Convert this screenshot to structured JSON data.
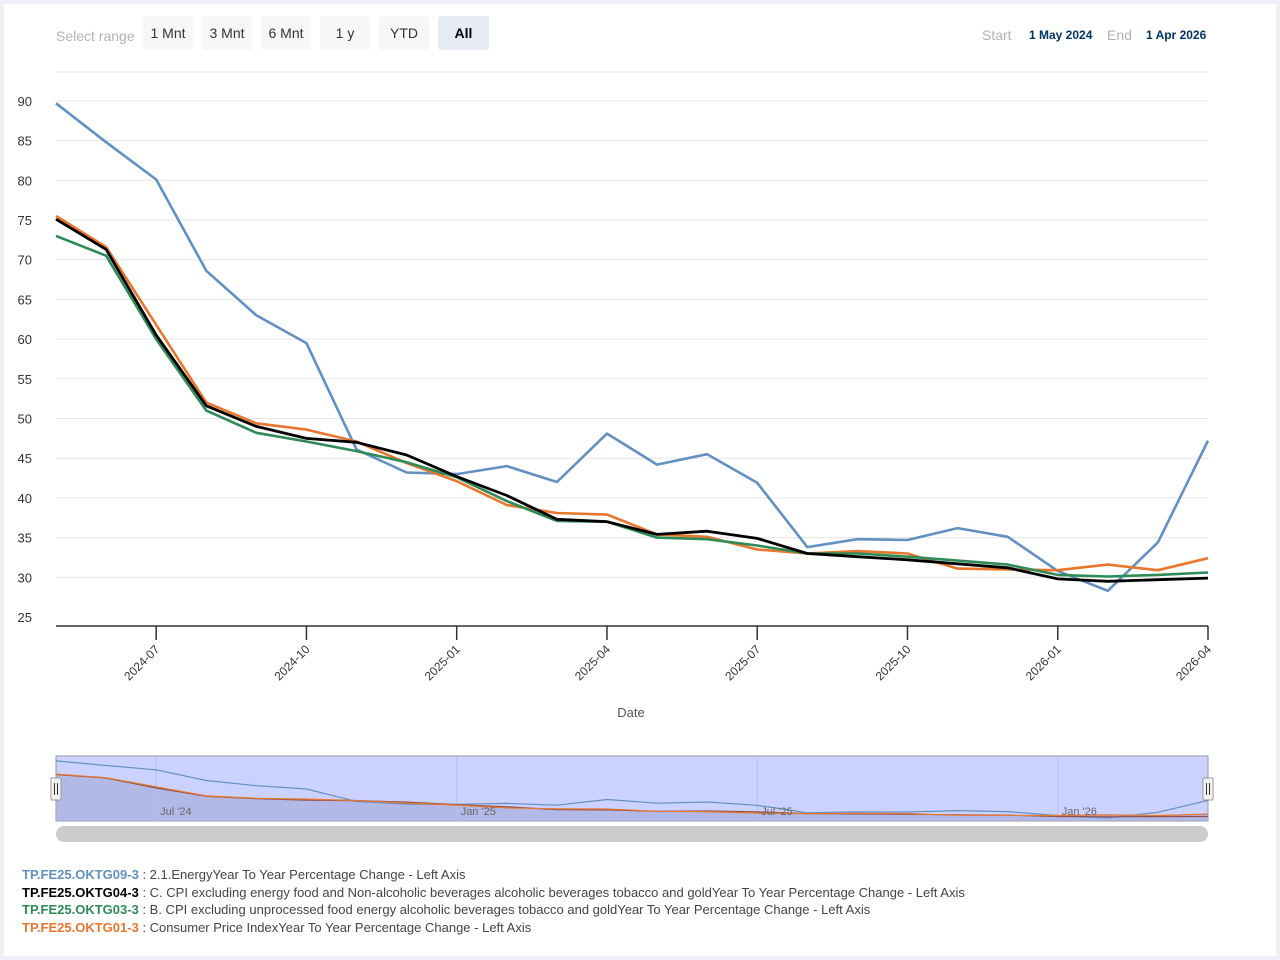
{
  "range_selector": {
    "label": "Select range",
    "buttons": [
      {
        "label": "1 Mnt",
        "active": false
      },
      {
        "label": "3 Mnt",
        "active": false
      },
      {
        "label": "6 Mnt",
        "active": false
      },
      {
        "label": "1 y",
        "active": false
      },
      {
        "label": "YTD",
        "active": false
      },
      {
        "label": "All",
        "active": true
      }
    ],
    "start_label": "Start",
    "start_value": "1 May 2024",
    "end_label": "End",
    "end_value": "1 Apr 2026"
  },
  "navigator": {
    "labels": [
      "Jul '24",
      "Jan '25",
      "Jul '25",
      "Jan '26"
    ]
  },
  "chart_data": {
    "type": "line",
    "xlabel": "Date",
    "ylabel": "",
    "ylim": [
      25,
      90
    ],
    "yticks": [
      25,
      30,
      35,
      40,
      45,
      50,
      55,
      60,
      65,
      70,
      75,
      80,
      85,
      90
    ],
    "xticks": [
      "2024-07",
      "2024-10",
      "2025-01",
      "2025-04",
      "2025-07",
      "2025-10",
      "2026-01",
      "2026-04"
    ],
    "x": [
      "2024-05",
      "2024-06",
      "2024-07",
      "2024-08",
      "2024-09",
      "2024-10",
      "2024-11",
      "2024-12",
      "2025-01",
      "2025-02",
      "2025-03",
      "2025-04",
      "2025-05",
      "2025-06",
      "2025-07",
      "2025-08",
      "2025-09",
      "2025-10",
      "2025-11",
      "2025-12",
      "2026-01",
      "2026-02",
      "2026-03",
      "2026-04"
    ],
    "grid": true,
    "legend_position": "bottom-left",
    "series": [
      {
        "code": "TP.FE25.OKTG09-3",
        "name": ": 2.1.EnergyYear To Year Percentage Change - Left Axis",
        "color": "#6290c3",
        "values": [
          89.7,
          84.8,
          80.1,
          68.6,
          63.0,
          59.5,
          46.1,
          43.2,
          43.0,
          44.0,
          42.0,
          48.1,
          44.2,
          45.5,
          41.9,
          33.8,
          34.8,
          34.7,
          36.2,
          35.1,
          30.8,
          28.3,
          34.4,
          47.2
        ]
      },
      {
        "code": "TP.FE25.OKTG04-3",
        "name": ": C. CPI excluding energy food and Non-alcoholic beverages alcoholic beverages tobacco and goldYear To Year Percentage Change - Left Axis",
        "color": "#000000",
        "values": [
          75.1,
          71.3,
          60.5,
          51.6,
          49.0,
          47.5,
          47.0,
          45.4,
          42.7,
          40.3,
          37.3,
          37.0,
          35.4,
          35.8,
          34.9,
          33.0,
          32.6,
          32.2,
          31.7,
          31.2,
          29.8,
          29.5,
          29.7,
          29.9
        ]
      },
      {
        "code": "TP.FE25.OKTG03-3",
        "name": ": B. CPI excluding unprocessed food energy alcoholic beverages tobacco and goldYear To Year Percentage Change - Left Axis",
        "color": "#2e8b57",
        "values": [
          73.0,
          70.5,
          60.0,
          51.0,
          48.2,
          47.1,
          45.9,
          44.5,
          42.6,
          39.6,
          37.1,
          37.0,
          35.0,
          34.8,
          34.0,
          33.0,
          33.0,
          32.6,
          32.1,
          31.6,
          30.3,
          30.1,
          30.3,
          30.6
        ]
      },
      {
        "code": "TP.FE25.OKTG01-3",
        "name": ": Consumer Price IndexYear To Year Percentage Change - Left Axis",
        "color": "#e8762d",
        "values": [
          75.5,
          71.6,
          61.8,
          52.0,
          49.4,
          48.6,
          47.1,
          44.4,
          42.1,
          39.1,
          38.1,
          37.9,
          35.4,
          35.1,
          33.5,
          33.0,
          33.3,
          33.0,
          31.1,
          31.0,
          30.9,
          31.6,
          30.9,
          32.4
        ]
      }
    ]
  }
}
